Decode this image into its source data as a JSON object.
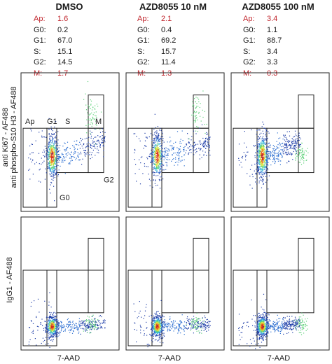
{
  "columns": [
    {
      "title": "DMSO",
      "stats": [
        {
          "label": "Ap:",
          "value": "1.6",
          "highlight": true
        },
        {
          "label": "G0:",
          "value": "0.2",
          "highlight": false
        },
        {
          "label": "G1:",
          "value": "67.0",
          "highlight": false
        },
        {
          "label": "S:",
          "value": "15.1",
          "highlight": false
        },
        {
          "label": "G2:",
          "value": "14.5",
          "highlight": false
        },
        {
          "label": "M:",
          "value": "1.7",
          "highlight": true
        }
      ]
    },
    {
      "title": "AZD8055 10 nM",
      "stats": [
        {
          "label": "Ap:",
          "value": "2.1",
          "highlight": true
        },
        {
          "label": "G0:",
          "value": "0.4",
          "highlight": false
        },
        {
          "label": "G1:",
          "value": "69.2",
          "highlight": false
        },
        {
          "label": "S:",
          "value": "15.7",
          "highlight": false
        },
        {
          "label": "G2:",
          "value": "11.4",
          "highlight": false
        },
        {
          "label": "M:",
          "value": "1.3",
          "highlight": true
        }
      ]
    },
    {
      "title": "AZD8055 100 nM",
      "stats": [
        {
          "label": "Ap:",
          "value": "3.4",
          "highlight": true
        },
        {
          "label": "G0:",
          "value": "1.1",
          "highlight": false
        },
        {
          "label": "G1:",
          "value": "88.7",
          "highlight": false
        },
        {
          "label": "S:",
          "value": "3.4",
          "highlight": false
        },
        {
          "label": "G2:",
          "value": "3.3",
          "highlight": false
        },
        {
          "label": "M:",
          "value": "0.3",
          "highlight": true
        }
      ]
    }
  ],
  "gate_labels": {
    "ap": "Ap",
    "g1": "G1",
    "s": "S",
    "m": "M",
    "g2": "G2",
    "g0": "G0"
  },
  "y_labels": {
    "top_line1": "anti Ki67 - AF488",
    "top_line2": "anti phospho-S10 H3 - AF488",
    "bottom": "IgG1 - AF488"
  },
  "x_label": "7-AAD",
  "colors": {
    "highlight": "#c0262d",
    "normal": "#1a1a1a",
    "density_low": "#1f3ea8",
    "density_high": "#d42a1c"
  },
  "chart_data": {
    "type": "scatter",
    "panels": [
      {
        "row": "anti Ki67 / anti phospho-S10 H3",
        "column": "DMSO"
      },
      {
        "row": "anti Ki67 / anti phospho-S10 H3",
        "column": "AZD8055 10 nM"
      },
      {
        "row": "anti Ki67 / anti phospho-S10 H3",
        "column": "AZD8055 100 nM"
      },
      {
        "row": "IgG1",
        "column": "DMSO"
      },
      {
        "row": "IgG1",
        "column": "AZD8055 10 nM"
      },
      {
        "row": "IgG1",
        "column": "AZD8055 100 nM"
      }
    ],
    "xlabel": "7-AAD",
    "ylabel_top": "anti Ki67 - AF488 / anti phospho-S10 H3 - AF488",
    "ylabel_bottom": "IgG1 - AF488",
    "gates": [
      "Ap",
      "G0",
      "G1",
      "S",
      "G2",
      "M"
    ],
    "grid": false
  }
}
